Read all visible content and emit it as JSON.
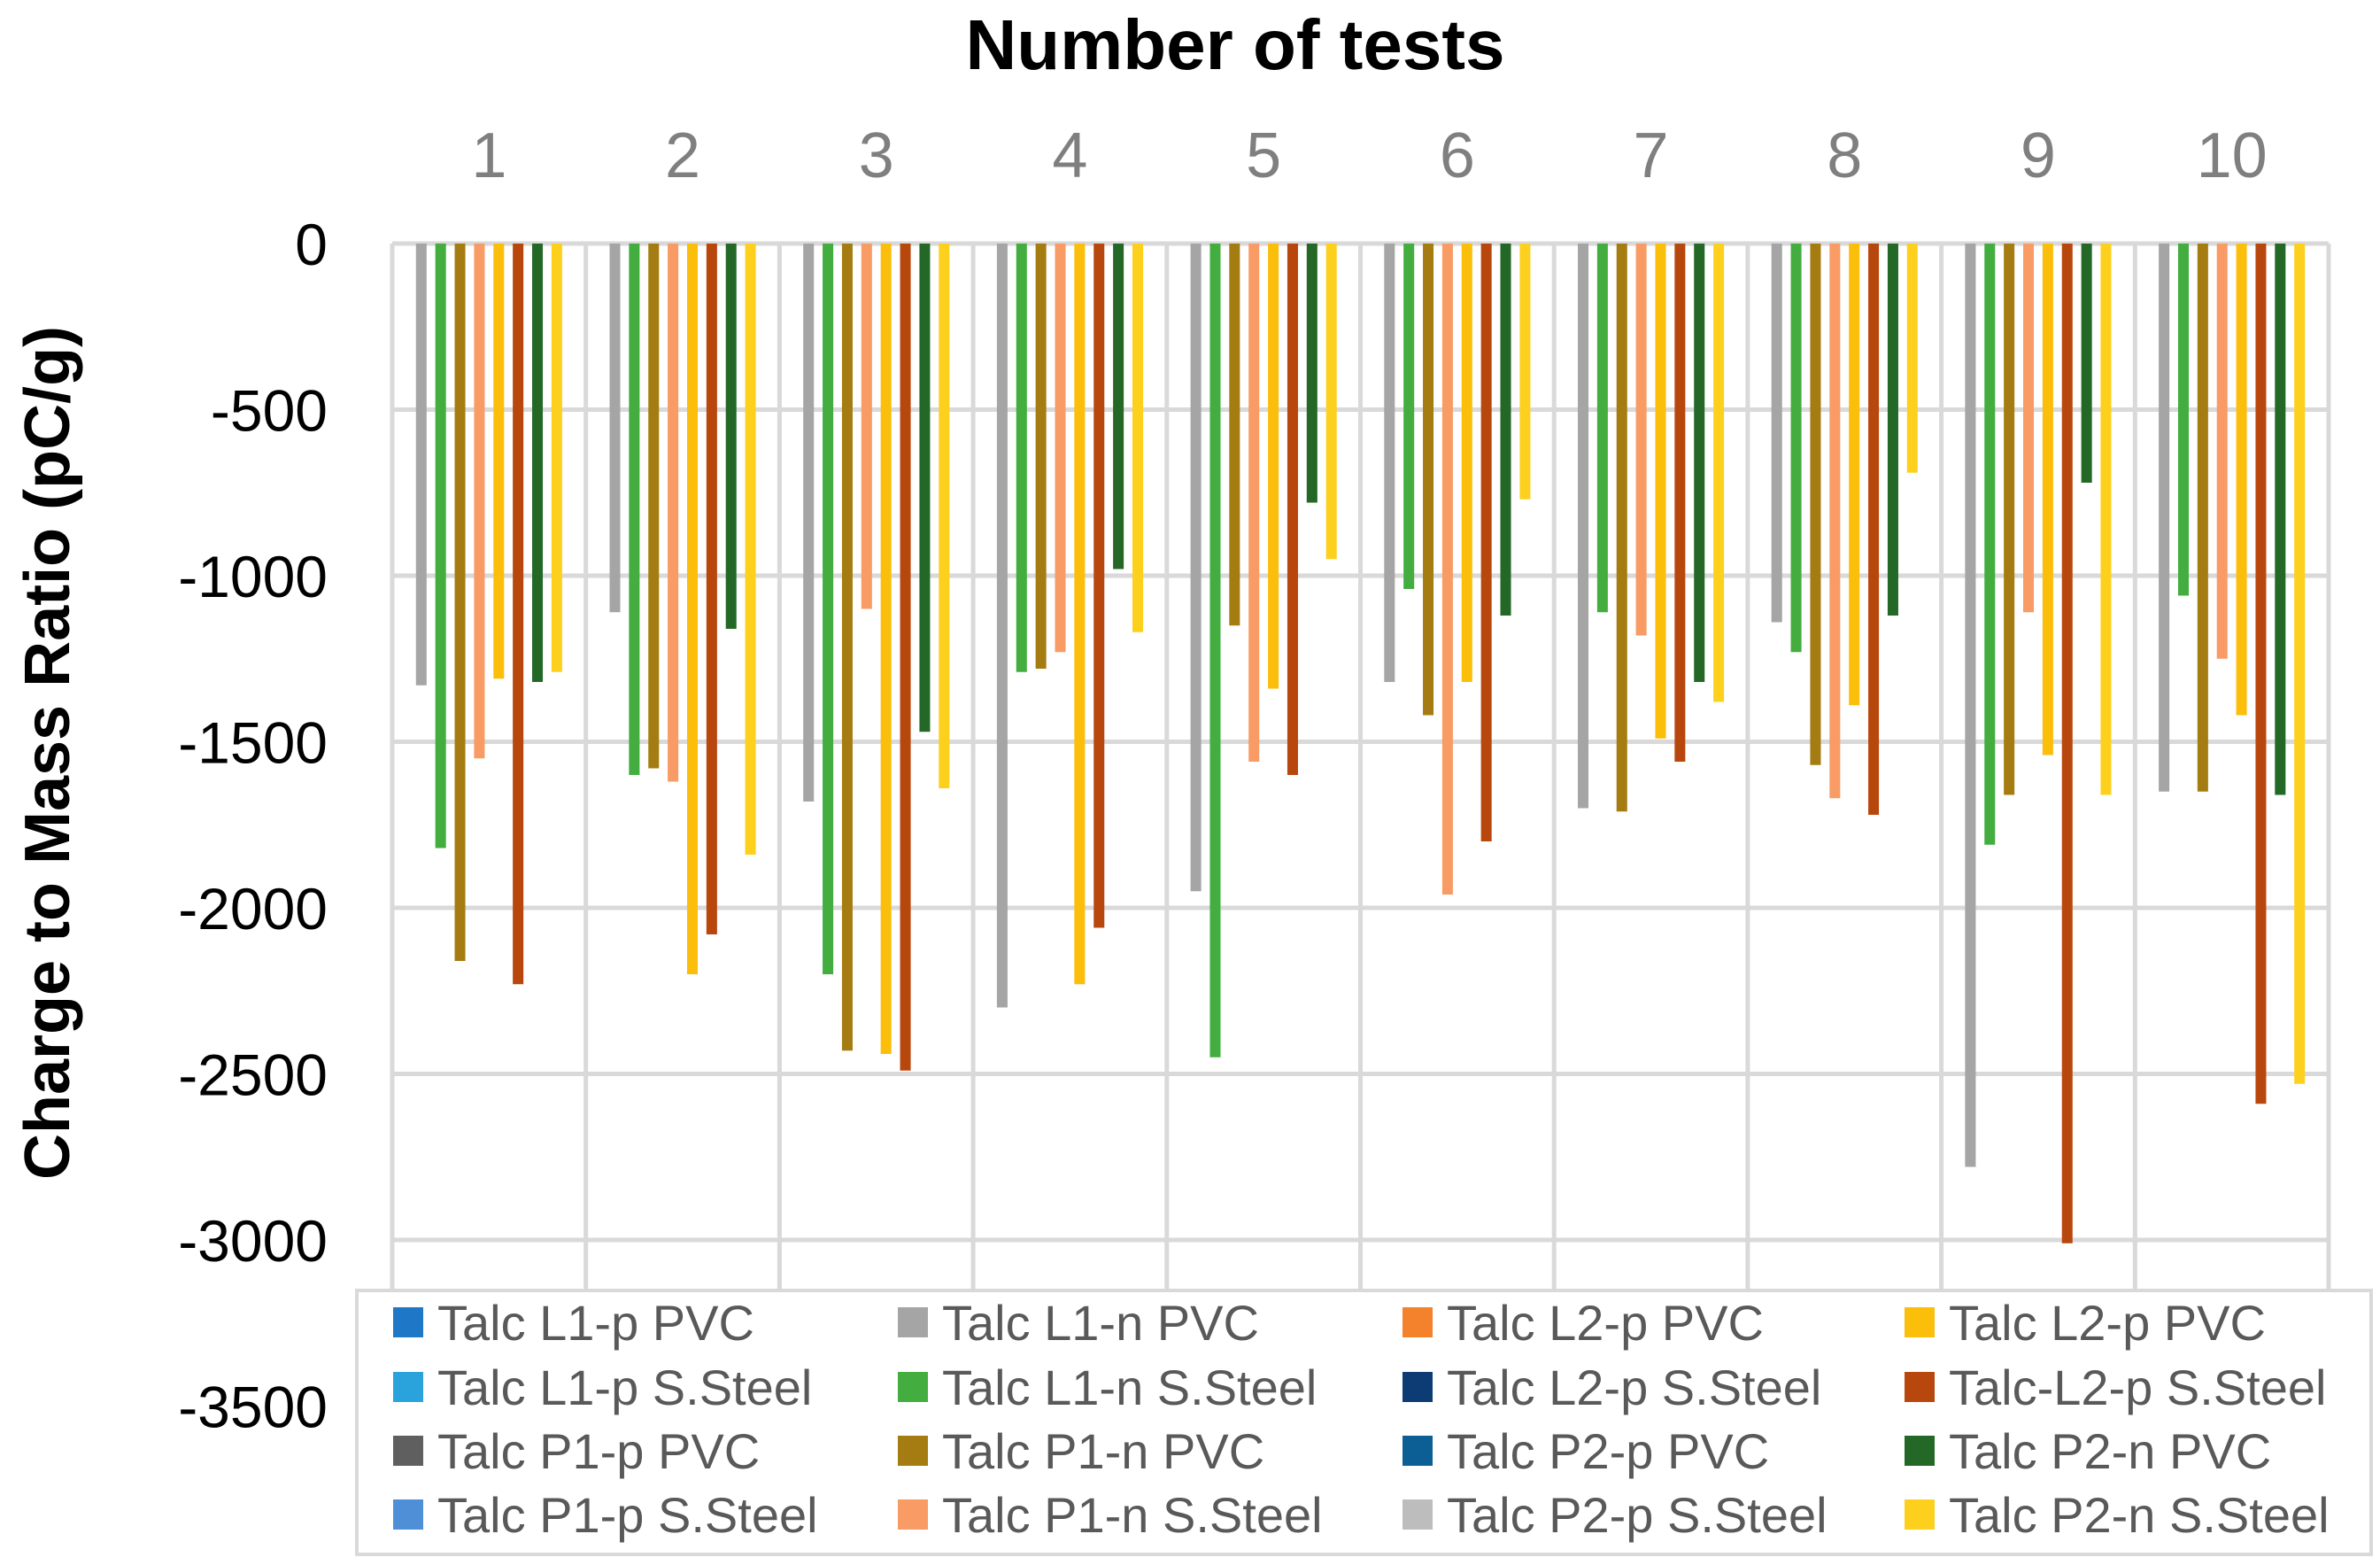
{
  "chart_data": {
    "type": "bar",
    "title": "Number of tests",
    "xlabel": "Number of tests",
    "ylabel": "Charge to Mass Ratio (pC/g)",
    "ylim": [
      -3500,
      0
    ],
    "yticks": [
      0,
      -500,
      -1000,
      -1500,
      -2000,
      -2500,
      -3000,
      -3500
    ],
    "yticks_labels": [
      "0",
      "-500",
      "-1000",
      "-1500",
      "-2000",
      "-2500",
      "-3000",
      "-3500"
    ],
    "categories": [
      "1",
      "2",
      "3",
      "4",
      "5",
      "6",
      "7",
      "8",
      "9",
      "10"
    ],
    "x_axis_position": "top",
    "grid": true,
    "legend_position": "bottom",
    "series": [
      {
        "name": "Talc L1-p PVC",
        "color": "#1f77c8",
        "values": [
          null,
          null,
          null,
          null,
          null,
          null,
          null,
          null,
          null,
          null
        ]
      },
      {
        "name": "Talc L1-p S.Steel",
        "color": "#2aa3dc",
        "values": [
          null,
          null,
          null,
          null,
          null,
          null,
          null,
          null,
          null,
          null
        ]
      },
      {
        "name": "Talc P1-p PVC",
        "color": "#5f5f5f",
        "values": [
          null,
          null,
          null,
          null,
          null,
          null,
          null,
          null,
          null,
          null
        ]
      },
      {
        "name": "Talc P1-p S.Steel",
        "color": "#4f8fd8",
        "values": [
          null,
          null,
          null,
          null,
          null,
          null,
          null,
          null,
          null,
          null
        ]
      },
      {
        "name": "Talc L1-n PVC",
        "color": "#a5a5a5",
        "values": [
          -1330,
          -1110,
          -1680,
          -2300,
          -1950,
          -1320,
          -1700,
          -1140,
          -2780,
          -1650
        ]
      },
      {
        "name": "Talc L1-n S.Steel",
        "color": "#43ad3f",
        "values": [
          -1820,
          -1600,
          -2200,
          -1290,
          -2450,
          -1040,
          -1110,
          -1230,
          -1810,
          -1060
        ]
      },
      {
        "name": "Talc P1-n PVC",
        "color": "#a57c12",
        "values": [
          -2160,
          -1580,
          -2430,
          -1280,
          -1150,
          -1420,
          -1710,
          -1570,
          -1660,
          -1650
        ]
      },
      {
        "name": "Talc P1-n S.Steel",
        "color": "#f89b65",
        "values": [
          -1550,
          -1620,
          -1100,
          -1230,
          -1560,
          -1960,
          -1180,
          -1670,
          -1110,
          -1250
        ]
      },
      {
        "name": "Talc L2-p PVC",
        "color": "#f4812c",
        "values": [
          null,
          null,
          null,
          null,
          null,
          null,
          null,
          null,
          null,
          null
        ]
      },
      {
        "name": "Talc L2-p S.Steel",
        "color": "#0d3b73",
        "values": [
          null,
          null,
          null,
          null,
          null,
          null,
          null,
          null,
          null,
          null
        ]
      },
      {
        "name": "Talc P2-p PVC",
        "color": "#0b5f95",
        "values": [
          null,
          null,
          null,
          null,
          null,
          null,
          null,
          null,
          null,
          null
        ]
      },
      {
        "name": "Talc P2-p S.Steel",
        "color": "#bdbdbd",
        "values": [
          null,
          null,
          null,
          null,
          null,
          null,
          null,
          null,
          null,
          null
        ]
      },
      {
        "name": "Talc L2-p PVC",
        "color": "#fbbe0a",
        "values": [
          -1310,
          -2200,
          -2440,
          -2230,
          -1340,
          -1320,
          -1490,
          -1390,
          -1540,
          -1420
        ]
      },
      {
        "name": "Talc-L2-p S.Steel",
        "color": "#b8470e",
        "values": [
          -2230,
          -2080,
          -2490,
          -2060,
          -1600,
          -1800,
          -1560,
          -1720,
          -3010,
          -2590
        ]
      },
      {
        "name": "Talc P2-n PVC",
        "color": "#236826",
        "values": [
          -1320,
          -1160,
          -1470,
          -980,
          -780,
          -1120,
          -1320,
          -1120,
          -720,
          -1660
        ]
      },
      {
        "name": "Talc P2-n S.Steel",
        "color": "#fdd01e",
        "values": [
          -1290,
          -1840,
          -1640,
          -1170,
          -950,
          -770,
          -1380,
          -690,
          -1660,
          -2530
        ]
      }
    ],
    "legend": [
      [
        "Talc L1-p PVC",
        "Talc L1-n PVC",
        "Talc L2-p PVC",
        "Talc L2-p PVC"
      ],
      [
        "Talc L1-p S.Steel",
        "Talc L1-n S.Steel",
        "Talc L2-p S.Steel",
        "Talc-L2-p S.Steel"
      ],
      [
        "Talc P1-p PVC",
        "Talc P1-n PVC",
        "Talc P2-p PVC",
        "Talc P2-n PVC"
      ],
      [
        "Talc P1-p S.Steel",
        "Talc P1-n S.Steel",
        "Talc P2-p S.Steel",
        "Talc P2-n S.Steel"
      ]
    ],
    "legend_colors": [
      [
        "#1f77c8",
        "#a5a5a5",
        "#f4812c",
        "#fbbe0a"
      ],
      [
        "#2aa3dc",
        "#43ad3f",
        "#0d3b73",
        "#b8470e"
      ],
      [
        "#5f5f5f",
        "#a57c12",
        "#0b5f95",
        "#236826"
      ],
      [
        "#4f8fd8",
        "#f89b65",
        "#bdbdbd",
        "#fdd01e"
      ]
    ]
  }
}
